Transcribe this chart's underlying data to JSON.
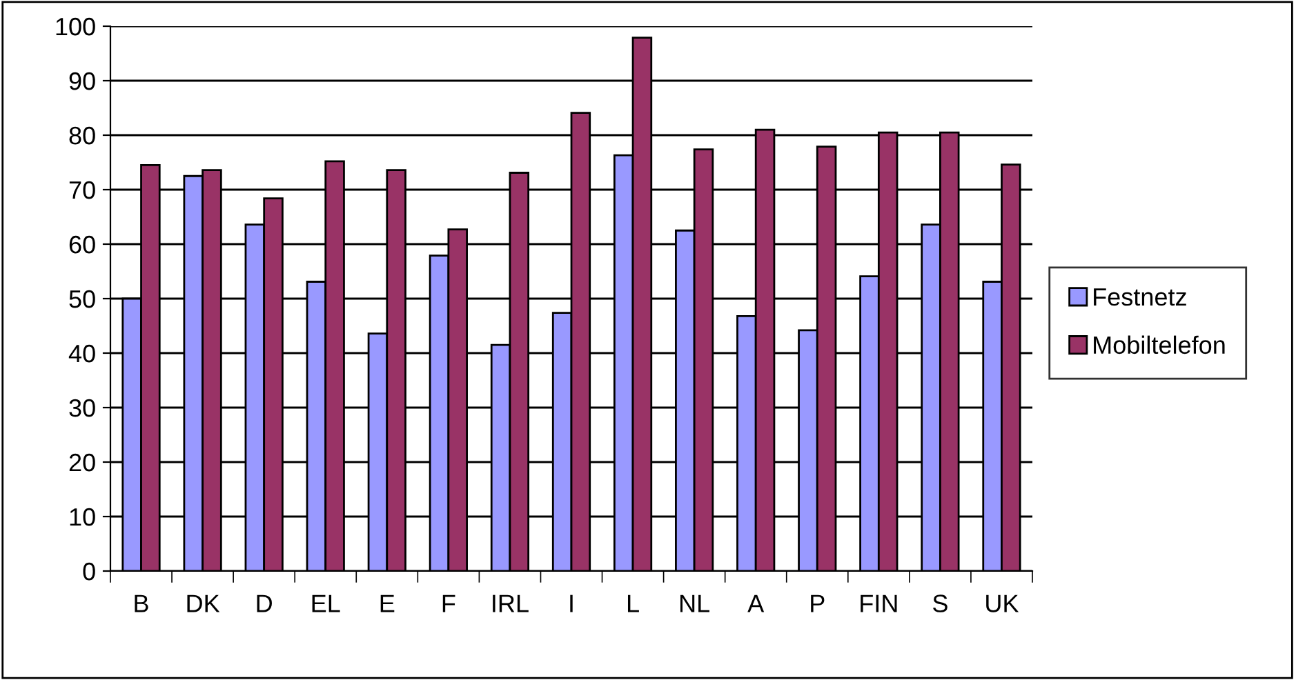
{
  "chart_data": {
    "type": "bar",
    "categories": [
      "B",
      "DK",
      "D",
      "EL",
      "E",
      "F",
      "IRL",
      "I",
      "L",
      "NL",
      "A",
      "P",
      "FIN",
      "S",
      "UK"
    ],
    "series": [
      {
        "name": "Festnetz",
        "color": "#9999ff",
        "values": [
          50,
          72.5,
          63.6,
          53.1,
          43.6,
          57.9,
          41.5,
          47.4,
          76.3,
          62.5,
          46.8,
          44.2,
          54.1,
          63.6,
          53.1
        ]
      },
      {
        "name": "Mobiltelefon",
        "color": "#993366",
        "values": [
          74.5,
          73.6,
          68.4,
          75.2,
          73.6,
          62.7,
          73.1,
          84.1,
          97.9,
          77.4,
          81.0,
          77.9,
          80.5,
          80.5,
          74.6
        ]
      }
    ],
    "ylim": [
      0,
      100
    ],
    "yticks": [
      0,
      10,
      20,
      30,
      40,
      50,
      60,
      70,
      80,
      90,
      100
    ],
    "grid": "y",
    "legend": "right"
  }
}
